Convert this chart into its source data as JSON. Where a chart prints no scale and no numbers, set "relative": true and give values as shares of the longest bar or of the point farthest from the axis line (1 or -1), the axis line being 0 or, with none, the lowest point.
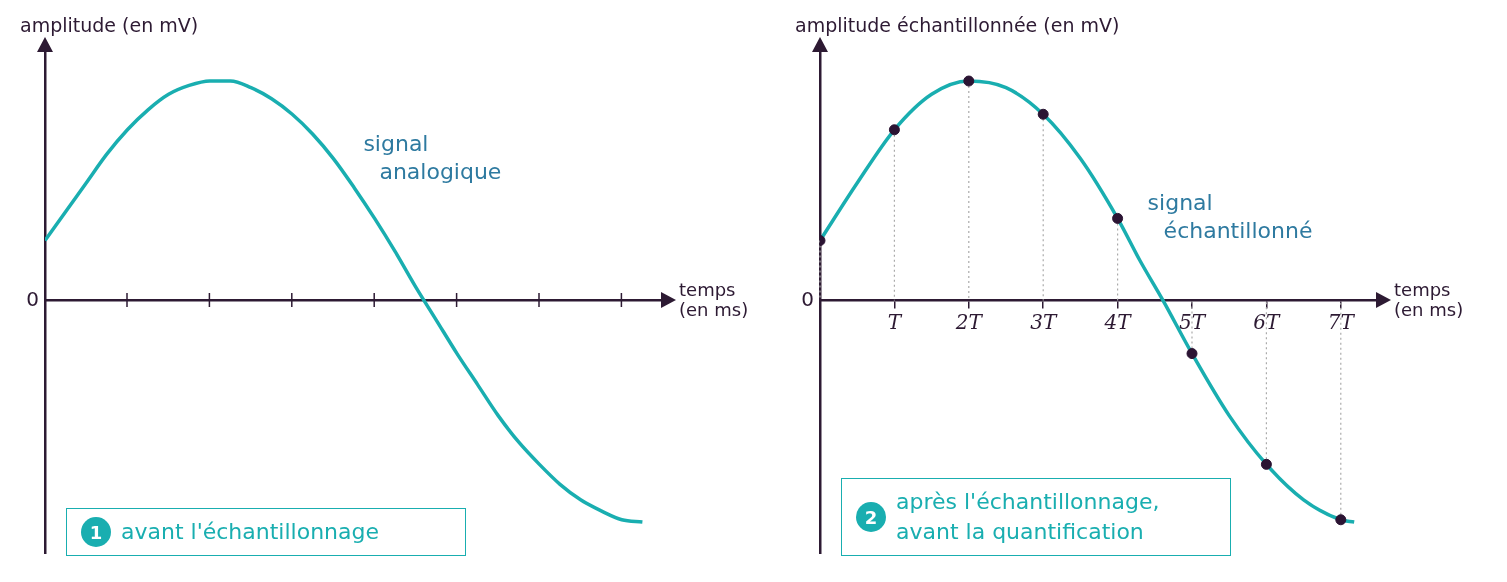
{
  "chart_data": [
    {
      "type": "line",
      "relative": true,
      "ylabel": "amplitude (en mV)",
      "xlabel": "temps (en ms)",
      "categories": [
        null,
        null,
        null,
        null,
        null,
        null,
        null,
        null,
        null,
        null,
        null,
        null,
        null,
        null,
        null,
        null,
        null,
        null,
        null,
        null,
        null,
        null,
        null,
        null,
        null,
        null,
        null,
        null,
        null,
        null
      ],
      "grid": false,
      "legend": false,
      "annotations": [
        "0",
        "1",
        "avant l'échantillonnage"
      ],
      "series": [
        {
          "name": "signal analogique",
          "color": "#19aeb0",
          "marker": "none",
          "line_style": "solid",
          "values": [
            0.27,
            0.4,
            0.53,
            0.66,
            0.77,
            0.86,
            0.93,
            0.97,
            0.99,
            0.99,
            0.96,
            0.91,
            0.84,
            0.75,
            0.64,
            0.51,
            0.37,
            0.22,
            0.06,
            -0.09,
            -0.24,
            -0.38,
            -0.52,
            -0.64,
            -0.74,
            -0.83,
            -0.9,
            -0.95,
            -0.99,
            -1
          ]
        }
      ]
    },
    {
      "type": "line",
      "relative": true,
      "ylabel": "amplitude échantillonnée (en mV)",
      "xlabel": "temps (en ms)",
      "xlim": [
        0,
        7.5
      ],
      "xticks": [
        {
          "value": 1,
          "label": "T"
        },
        {
          "value": 2,
          "label": "2T"
        },
        {
          "value": 3,
          "label": "3T"
        },
        {
          "value": 4,
          "label": "4T"
        },
        {
          "value": 5,
          "label": "5T"
        },
        {
          "value": 6,
          "label": "6T"
        },
        {
          "value": 7,
          "label": "7T"
        }
      ],
      "grid": false,
      "legend": false,
      "annotations": [
        "0",
        "2",
        "après l'échantillonnage, avant la quantification"
      ],
      "series": [
        {
          "name": "signal échantillonné",
          "color": "#19aeb0",
          "marker": "none",
          "line_style": "solid",
          "x": [
            0,
            0.5,
            1,
            1.5,
            2,
            2.5,
            3,
            3.5,
            4,
            4.3,
            4.61,
            5,
            5.5,
            6,
            6.5,
            7,
            7.18
          ],
          "values": [
            0.27,
            0.53,
            0.77,
            0.93,
            0.99,
            0.96,
            0.84,
            0.64,
            0.37,
            0.18,
            0,
            -0.24,
            -0.52,
            -0.74,
            -0.9,
            -0.99,
            -1
          ]
        },
        {
          "type": "lollipop",
          "color": "#2b1433",
          "marker": "circle",
          "line_style": "dotted",
          "x": [
            0,
            1,
            2,
            3,
            4,
            5,
            6,
            7
          ],
          "values": [
            0.27,
            0.77,
            0.99,
            0.84,
            0.37,
            -0.24,
            -0.74,
            -0.99
          ]
        }
      ]
    }
  ]
}
